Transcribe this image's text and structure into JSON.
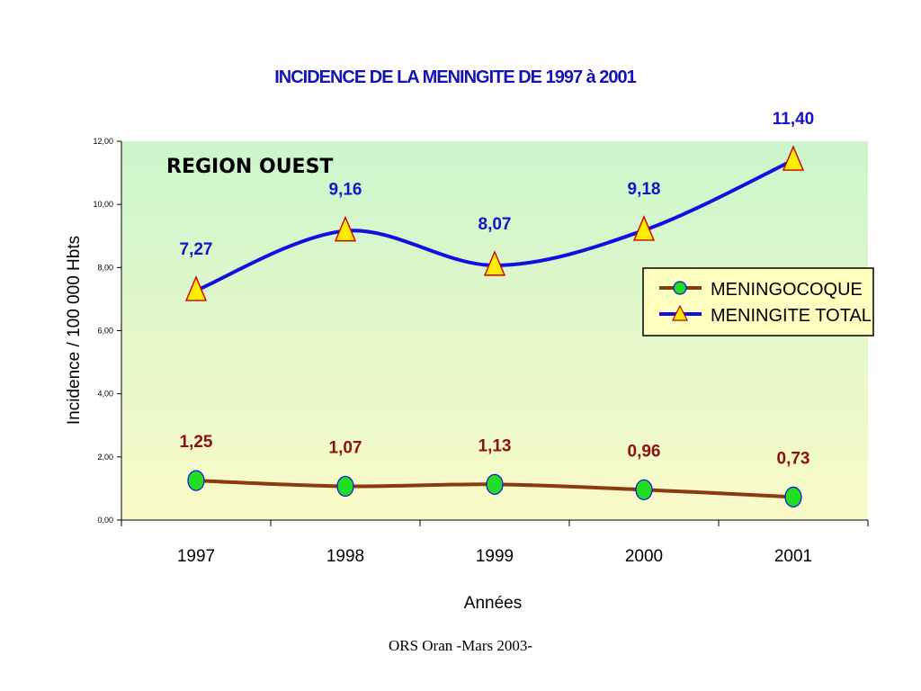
{
  "footer": "ORS Oran -Mars 2003-",
  "chart_data": {
    "type": "line",
    "title": "INCIDENCE DE LA MENINGITE DE 1997 à 2001",
    "annotation": "REGION OUEST",
    "xlabel": "Années",
    "ylabel": "Incidence / 100 000 Hbts",
    "categories": [
      "1997",
      "1998",
      "1999",
      "2000",
      "2001"
    ],
    "ylim": [
      0,
      12
    ],
    "y_ticks": [
      0,
      2,
      4,
      6,
      8,
      10,
      12
    ],
    "y_tick_labels": [
      "0,00",
      "2,00",
      "4,00",
      "6,00",
      "8,00",
      "10,00",
      "12,00"
    ],
    "grid": false,
    "legend_position": "right",
    "series": [
      {
        "name": "MENINGOCOQUE",
        "values": [
          1.25,
          1.07,
          1.13,
          0.96,
          0.73
        ],
        "labels": [
          "1,25",
          "1,07",
          "1,13",
          "0,96",
          "0,73"
        ],
        "color": "#8b3a0e",
        "marker": "circle",
        "marker_color": "#22dd22"
      },
      {
        "name": "MENINGITE TOTAL",
        "values": [
          7.27,
          9.16,
          8.07,
          9.18,
          11.4
        ],
        "labels": [
          "7,27",
          "9,16",
          "8,07",
          "9,18",
          "11,40"
        ],
        "color": "#1010e0",
        "marker": "triangle",
        "marker_color": "#ffee00"
      }
    ],
    "colors": {
      "plot_top": "#ccf5cc",
      "plot_bottom": "#fafac8",
      "legend_bg": "#ffffc0"
    }
  }
}
